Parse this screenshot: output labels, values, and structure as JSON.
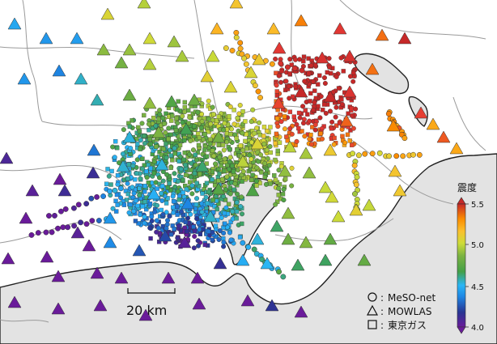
{
  "map": {
    "scale_bar_label": "20 km",
    "colors": {
      "land": "#ffffff",
      "sea": "#e3e3e3",
      "coast": "#222222",
      "boundary": "#9a9a9a"
    }
  },
  "colorbar": {
    "title": "震度",
    "ticks": [
      "5.5",
      "5.0",
      "4.5",
      "4.0"
    ],
    "min": 4.0,
    "max": 5.5,
    "stops": [
      "#6a1b9a",
      "#283593",
      "#1e88e5",
      "#29b6f6",
      "#43a047",
      "#7cb342",
      "#cddc39",
      "#fbc02d",
      "#fb8c00",
      "#e53935",
      "#c62828"
    ]
  },
  "legend": {
    "items": [
      {
        "symbol": "circle",
        "label": "MeSO-net"
      },
      {
        "symbol": "triangle",
        "label": "MOWLAS"
      },
      {
        "symbol": "square",
        "label": "東京ガス"
      }
    ]
  }
}
